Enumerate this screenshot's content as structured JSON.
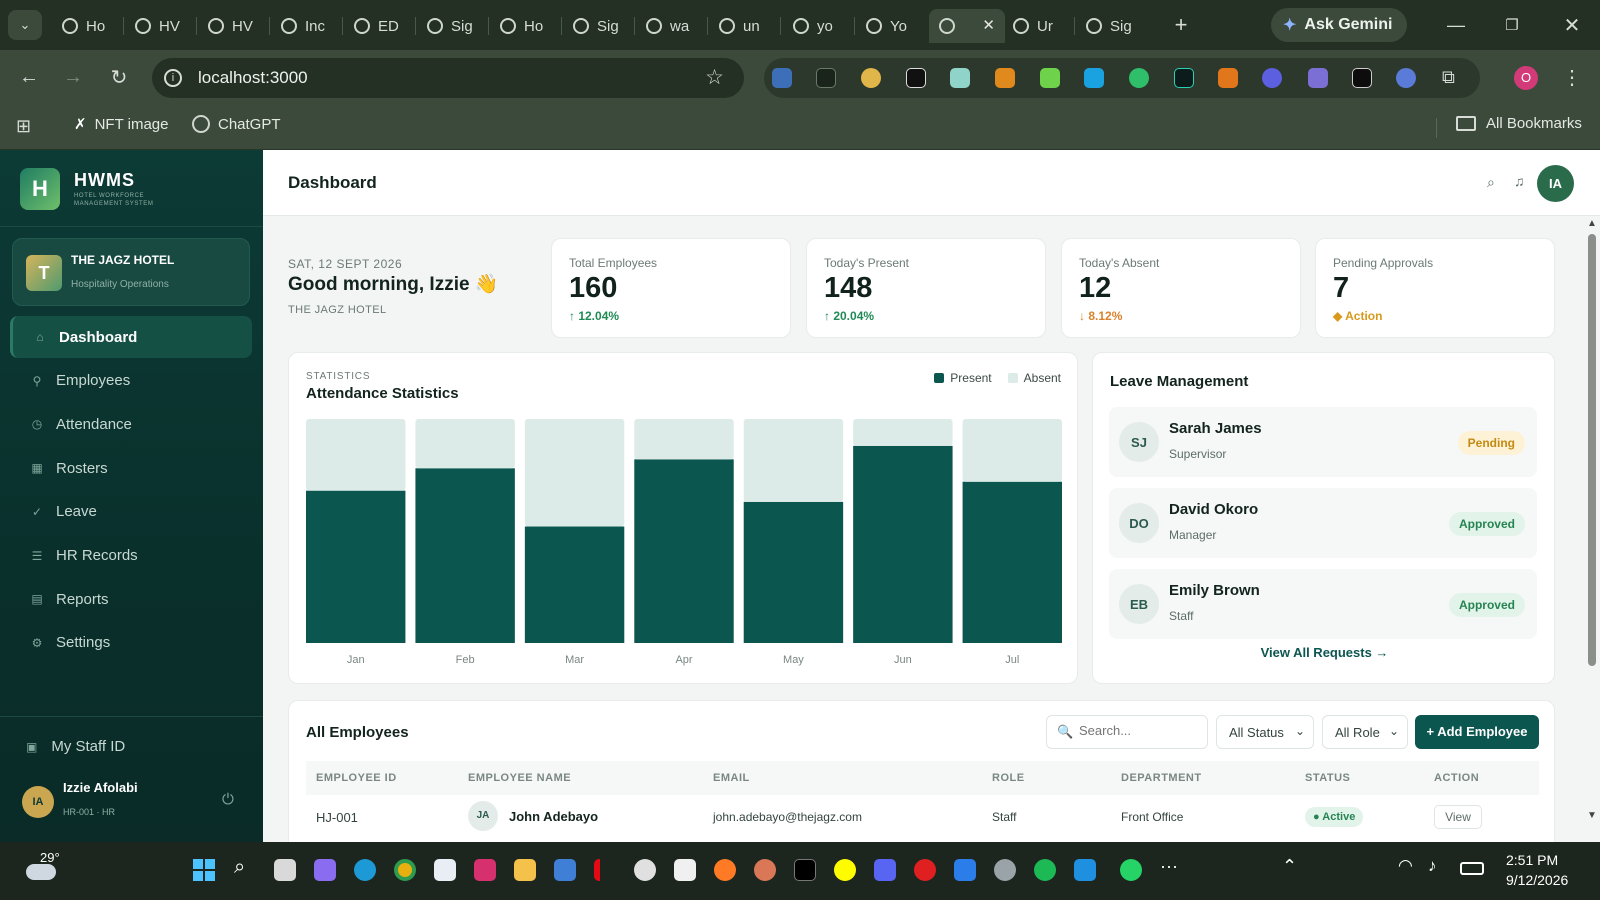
{
  "browser": {
    "tabs": [
      {
        "label": "Ho"
      },
      {
        "label": "HV"
      },
      {
        "label": "HV"
      },
      {
        "label": "Inc"
      },
      {
        "label": "ED"
      },
      {
        "label": "Sig"
      },
      {
        "label": "Ho"
      },
      {
        "label": "Sig"
      },
      {
        "label": "wa"
      },
      {
        "label": "un"
      },
      {
        "label": "yo"
      },
      {
        "label": "Yo"
      },
      {
        "label": ""
      },
      {
        "label": "Ur"
      },
      {
        "label": "Sig"
      }
    ],
    "new_tab": "+",
    "ask_gemini": "Ask Gemini",
    "url": "localhost:3000",
    "profile_initial": "O",
    "bookmarks": [
      {
        "label": "NFT image"
      },
      {
        "label": "ChatGPT"
      }
    ],
    "all_bookmarks": "All Bookmarks"
  },
  "sidebar": {
    "logo_title": "HWMS",
    "logo_subtitle": "HOTEL WORKFORCE MANAGEMENT SYSTEM",
    "hotel_initial": "T",
    "hotel_name": "THE JAGZ HOTEL",
    "hotel_sub": "Hospitality Operations",
    "nav": [
      {
        "label": "Dashboard",
        "icon": "home-icon"
      },
      {
        "label": "Employees",
        "icon": "user-icon"
      },
      {
        "label": "Attendance",
        "icon": "clock-icon"
      },
      {
        "label": "Rosters",
        "icon": "grid-icon"
      },
      {
        "label": "Leave",
        "icon": "check-icon"
      },
      {
        "label": "HR Records",
        "icon": "list-icon"
      },
      {
        "label": "Reports",
        "icon": "chart-icon"
      },
      {
        "label": "Settings",
        "icon": "gear-icon"
      }
    ],
    "staff_id": "My Staff ID",
    "user_initials": "IA",
    "user_name": "Izzie Afolabi",
    "user_meta": "HR-001 · HR"
  },
  "header": {
    "title": "Dashboard",
    "avatar_initials": "IA"
  },
  "greeting": {
    "date": "SAT, 12 SEPT 2026",
    "text": "Good morning, Izzie",
    "emoji": "👋",
    "hotel": "THE JAGZ HOTEL"
  },
  "stats": [
    {
      "label": "Total Employees",
      "value": "160",
      "delta": "↑ 12.04%",
      "color": "#1f8a56"
    },
    {
      "label": "Today's Present",
      "value": "148",
      "delta": "↑ 20.04%",
      "color": "#1f8a56"
    },
    {
      "label": "Today's Absent",
      "value": "12",
      "delta": "↓ 8.12%",
      "color": "#d9822b"
    },
    {
      "label": "Pending Approvals",
      "value": "7",
      "delta": "◆ Action",
      "color": "#d99a1b"
    }
  ],
  "chart_data": {
    "type": "bar",
    "overline": "STATISTICS",
    "title": "Attendance Statistics",
    "categories": [
      "Jan",
      "Feb",
      "Mar",
      "Apr",
      "May",
      "Jun",
      "Jul"
    ],
    "series": [
      {
        "name": "Present",
        "color": "#0c5650",
        "values": [
          68,
          78,
          52,
          82,
          63,
          88,
          72
        ]
      },
      {
        "name": "Absent",
        "color": "#dcebe7",
        "values": [
          32,
          22,
          48,
          18,
          37,
          12,
          28
        ]
      }
    ],
    "stacked": true,
    "ylim": [
      0,
      100
    ],
    "grid": false,
    "legend": "top-right"
  },
  "leave": {
    "title": "Leave Management",
    "items": [
      {
        "initials": "SJ",
        "name": "Sarah James",
        "role": "Supervisor",
        "status": "Pending",
        "kind": "pending"
      },
      {
        "initials": "DO",
        "name": "David Okoro",
        "role": "Manager",
        "status": "Approved",
        "kind": "approved"
      },
      {
        "initials": "EB",
        "name": "Emily Brown",
        "role": "Staff",
        "status": "Approved",
        "kind": "approved"
      }
    ],
    "view_all": "View All Requests →"
  },
  "employees": {
    "title": "All Employees",
    "search_placeholder": "Search...",
    "status_filter": "All Status",
    "role_filter": "All Role",
    "add_button": "+ Add Employee",
    "columns": [
      "EMPLOYEE ID",
      "EMPLOYEE NAME",
      "EMAIL",
      "ROLE",
      "DEPARTMENT",
      "STATUS",
      "ACTION"
    ],
    "rows": [
      {
        "id": "HJ-001",
        "initials": "JA",
        "name": "John Adebayo",
        "email": "john.adebayo@thejagz.com",
        "role": "Staff",
        "department": "Front Office",
        "status": "● Active",
        "action": "View"
      }
    ]
  },
  "taskbar": {
    "weather_temp": "29°",
    "time": "2:51 PM",
    "date": "9/12/2026",
    "more": "···"
  }
}
